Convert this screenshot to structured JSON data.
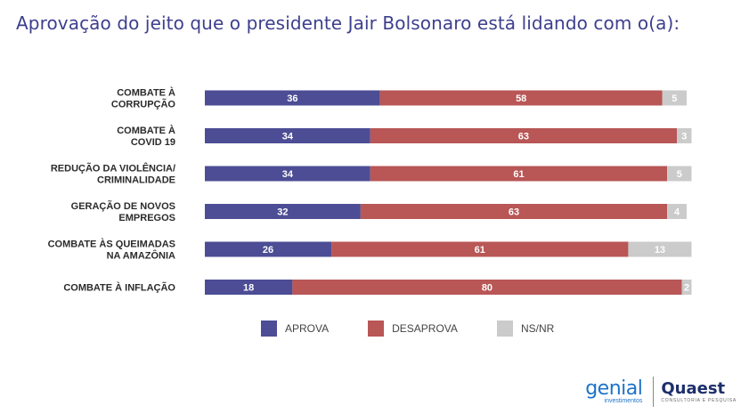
{
  "title": "Aprovação do jeito que o presidente Jair Bolsonaro está lidando com o(a):",
  "colors": {
    "aprova": "#4c4d95",
    "desaprova": "#b95656",
    "nsnr": "#cbcbcb",
    "title": "#3d3f8e"
  },
  "legend": [
    {
      "label": "APROVA",
      "color": "#4c4d95"
    },
    {
      "label": "DESAPROVA",
      "color": "#b95656"
    },
    {
      "label": "NS/NR",
      "color": "#cbcbcb"
    }
  ],
  "chart_data": {
    "type": "bar",
    "orientation": "horizontal",
    "stacked": true,
    "categories": [
      [
        "COMBATE À",
        "CORRUPÇÃO"
      ],
      [
        "COMBATE À",
        "COVID 19"
      ],
      [
        "REDUÇÃO DA VIOLÊNCIA/",
        "CRIMINALIDADE"
      ],
      [
        "GERAÇÃO DE NOVOS",
        "EMPREGOS"
      ],
      [
        "COMBATE ÀS QUEIMADAS",
        "NA AMAZÔNIA"
      ],
      [
        "COMBATE À INFLAÇÃO"
      ]
    ],
    "series": [
      {
        "name": "APROVA",
        "values": [
          36,
          34,
          34,
          32,
          26,
          18
        ]
      },
      {
        "name": "DESAPROVA",
        "values": [
          58,
          63,
          61,
          63,
          61,
          80
        ]
      },
      {
        "name": "NS/NR",
        "values": [
          5,
          3,
          5,
          4,
          13,
          2
        ]
      }
    ],
    "xlim": [
      0,
      99
    ],
    "grid": false,
    "legend_position": "bottom"
  },
  "logos": {
    "genial": {
      "main": "genial",
      "sub": "investimentos"
    },
    "quaest": {
      "main": "Quaest",
      "sub": "CONSULTORIA E PESQUISA"
    }
  }
}
